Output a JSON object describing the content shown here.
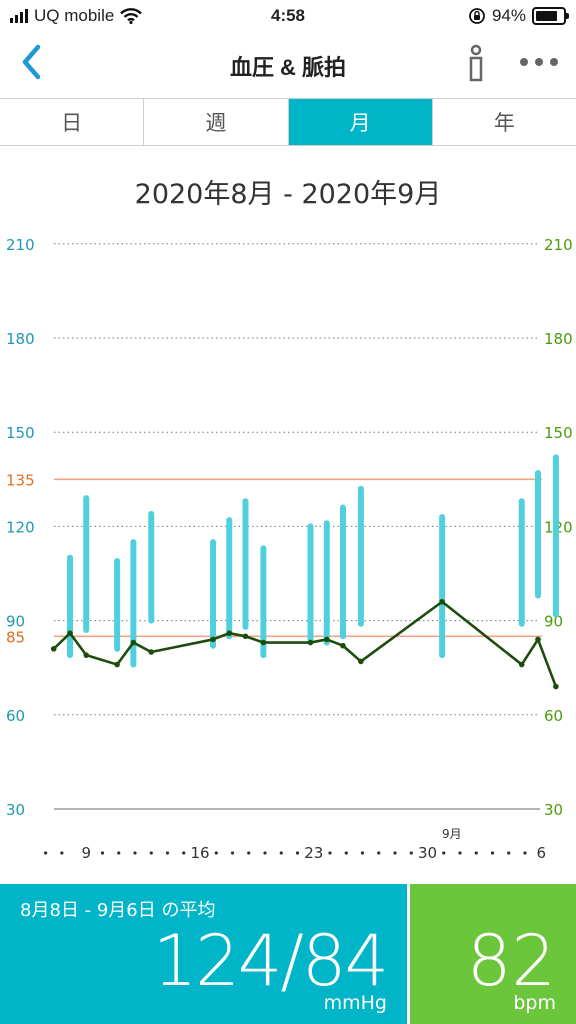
{
  "status": {
    "carrier": "UQ mobile",
    "time": "4:58",
    "battery_text": "94%",
    "battery_level": 0.94
  },
  "nav": {
    "title": "血圧 & 脈拍",
    "back_icon": "chevron-left-icon",
    "info_icon": "info-icon",
    "more_icon": "more-icon"
  },
  "tabs": [
    {
      "label": "日",
      "active": false
    },
    {
      "label": "週",
      "active": false
    },
    {
      "label": "月",
      "active": true
    },
    {
      "label": "年",
      "active": false
    }
  ],
  "date_range": "2020年8月 - 2020年9月",
  "colors": {
    "accent": "#00b5c8",
    "bp_bar": "#4fd0dc",
    "pulse_line": "#1d4d0c",
    "threshold": "#f0a585",
    "left_axis": "#1f98b0",
    "right_axis": "#4e9a0e",
    "threshold_text": "#e07020",
    "pulse_panel": "#6cc63c"
  },
  "chart_data": {
    "type": "bar",
    "left_ticks": [
      "210",
      "180",
      "150",
      "120",
      "90",
      "60",
      "30"
    ],
    "right_ticks": [
      "210",
      "180",
      "150",
      "120",
      "90",
      "60",
      "30"
    ],
    "ylim": [
      30,
      210
    ],
    "thresholds": [
      {
        "label": "135",
        "value": 135
      },
      {
        "label": "85",
        "value": 85
      }
    ],
    "x_labels": [
      {
        "day": 9,
        "label": "9"
      },
      {
        "day": 16,
        "label": "16"
      },
      {
        "day": 23,
        "label": "23"
      },
      {
        "day": 30,
        "label": "30"
      },
      {
        "day": 37,
        "label": "6"
      }
    ],
    "month_labels": [
      {
        "day": 31.5,
        "label": "9月"
      }
    ],
    "x_dots": [
      6.5,
      7.5,
      10,
      11,
      12,
      13,
      14,
      15,
      17,
      18,
      19,
      20,
      21,
      22,
      24,
      25,
      26,
      27,
      28,
      29,
      31,
      32,
      33,
      34,
      35,
      36
    ],
    "bp": [
      {
        "day": 8,
        "systolic": 110,
        "diastolic": 79
      },
      {
        "day": 9,
        "systolic": 129,
        "diastolic": 87
      },
      {
        "day": 10.9,
        "systolic": 109,
        "diastolic": 81
      },
      {
        "day": 11.9,
        "systolic": 115,
        "diastolic": 76
      },
      {
        "day": 13,
        "systolic": 124,
        "diastolic": 90
      },
      {
        "day": 16.8,
        "systolic": 115,
        "diastolic": 82
      },
      {
        "day": 17.8,
        "systolic": 122,
        "diastolic": 85
      },
      {
        "day": 18.8,
        "systolic": 128,
        "diastolic": 88
      },
      {
        "day": 19.9,
        "systolic": 113,
        "diastolic": 79
      },
      {
        "day": 22.8,
        "systolic": 120,
        "diastolic": 84
      },
      {
        "day": 23.8,
        "systolic": 121,
        "diastolic": 83
      },
      {
        "day": 24.8,
        "systolic": 126,
        "diastolic": 85
      },
      {
        "day": 25.9,
        "systolic": 132,
        "diastolic": 89
      },
      {
        "day": 30.9,
        "systolic": 123,
        "diastolic": 79
      },
      {
        "day": 35.8,
        "systolic": 128,
        "diastolic": 89
      },
      {
        "day": 36.8,
        "systolic": 137,
        "diastolic": 98
      },
      {
        "day": 37.9,
        "systolic": 142,
        "diastolic": 92
      }
    ],
    "pulse": [
      {
        "day": 7,
        "value": 81
      },
      {
        "day": 8,
        "value": 86
      },
      {
        "day": 9,
        "value": 79
      },
      {
        "day": 10.9,
        "value": 76
      },
      {
        "day": 11.9,
        "value": 83
      },
      {
        "day": 13,
        "value": 80
      },
      {
        "day": 16.8,
        "value": 84
      },
      {
        "day": 17.8,
        "value": 86
      },
      {
        "day": 18.8,
        "value": 85
      },
      {
        "day": 19.9,
        "value": 83
      },
      {
        "day": 22.8,
        "value": 83
      },
      {
        "day": 23.8,
        "value": 84
      },
      {
        "day": 24.8,
        "value": 82
      },
      {
        "day": 25.9,
        "value": 77
      },
      {
        "day": 30.9,
        "value": 96
      },
      {
        "day": 35.8,
        "value": 76
      },
      {
        "day": 36.8,
        "value": 84
      },
      {
        "day": 37.9,
        "value": 69
      }
    ]
  },
  "summary": {
    "period": "8月8日 - 9月6日 の平均",
    "value": "124/84",
    "unit": "mmHg"
  },
  "pulse_summary": {
    "value": "82",
    "unit": "bpm"
  }
}
